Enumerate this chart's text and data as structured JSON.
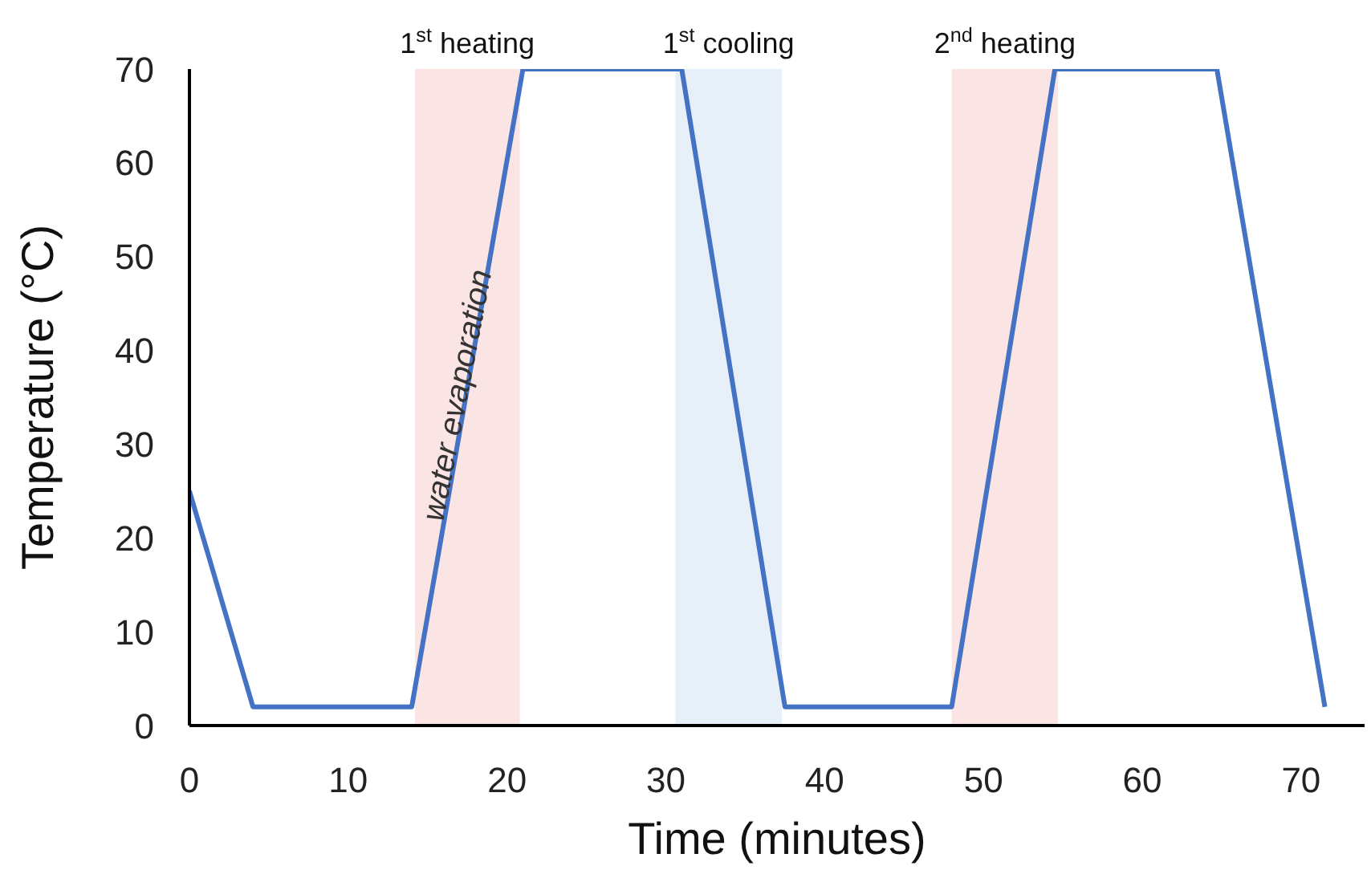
{
  "chart_data": {
    "type": "line",
    "xlabel": "Time (minutes)",
    "ylabel": "Temperature (°C)",
    "x": [
      0,
      4,
      14,
      21,
      31,
      37.5,
      48,
      54.5,
      64.7,
      71.5
    ],
    "series": [
      {
        "color": "#4472c4",
        "values": [
          25,
          2,
          2,
          70,
          70,
          2,
          2,
          70,
          70,
          2
        ]
      }
    ],
    "xlim": [
      0,
      74
    ],
    "xticks": [
      0,
      10,
      20,
      30,
      40,
      50,
      60,
      70
    ],
    "ylim": [
      0,
      70
    ],
    "yticks": [
      0,
      10,
      20,
      30,
      40,
      50,
      60,
      70
    ],
    "marker": "none",
    "line_style": "solid",
    "bands": [
      {
        "axis": "x",
        "from": 14.2,
        "to": 20.8,
        "label": "1$^{st}$ heating",
        "color": "#fbe4e4"
      },
      {
        "axis": "x",
        "from": 30.6,
        "to": 37.3,
        "label": "1$^{st}$ cooling",
        "color": "#e7f0f9"
      },
      {
        "axis": "x",
        "from": 48,
        "to": 54.7,
        "label": "2$^{nd}$ heating",
        "color": "#fbe4e4"
      }
    ],
    "annotations": [
      {
        "text": "water evaporation",
        "x": 17.5,
        "y": 35
      }
    ]
  }
}
